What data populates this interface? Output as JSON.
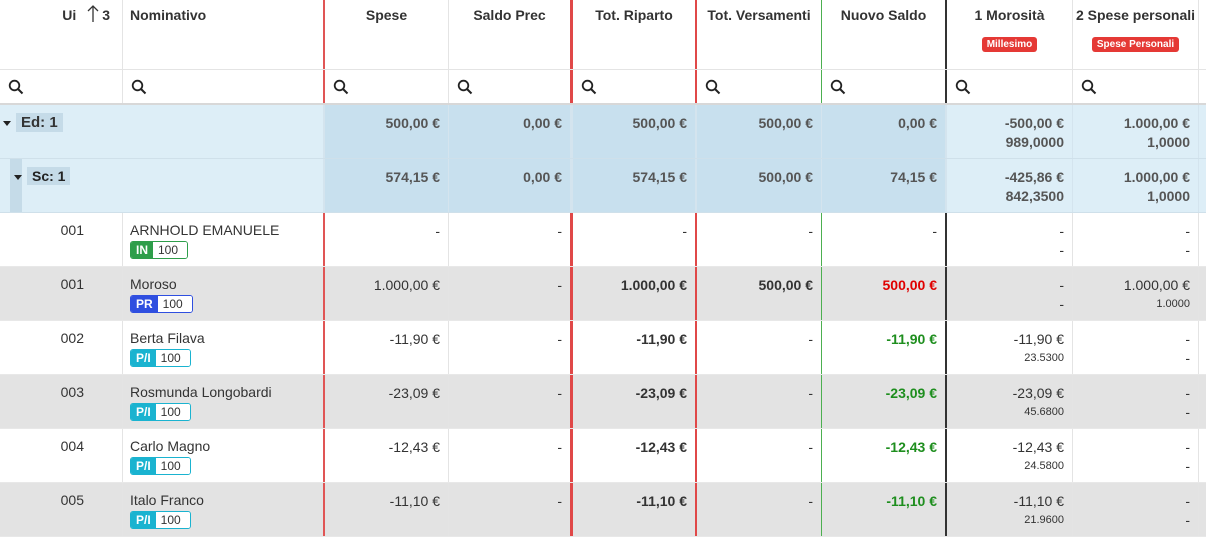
{
  "header": {
    "columns": [
      {
        "label": "Ui",
        "sort": "3"
      },
      {
        "label": "Nominativo"
      },
      {
        "label": "Spese"
      },
      {
        "label": "Saldo Prec"
      },
      {
        "label": "Tot. Riparto"
      },
      {
        "label": "Tot. Versamenti"
      },
      {
        "label": "Nuovo Saldo"
      },
      {
        "label": "1 Morosità",
        "badge": "Millesimo"
      },
      {
        "label": "2 Spese personali",
        "badge": "Spese Personali"
      }
    ]
  },
  "groups": [
    {
      "label": "Ed: 1",
      "spese": "500,00 €",
      "saldo_prec": "0,00 €",
      "tot_riparto": "500,00 €",
      "tot_versamenti": "500,00 €",
      "nuovo_saldo": "0,00 €",
      "morosita": [
        "-500,00 €",
        "989,0000"
      ],
      "spese_personali": [
        "1.000,00 €",
        "1,0000"
      ]
    },
    {
      "label": "Sc: 1",
      "spese": "574,15 €",
      "saldo_prec": "0,00 €",
      "tot_riparto": "574,15 €",
      "tot_versamenti": "500,00 €",
      "nuovo_saldo": "74,15 €",
      "morosita": [
        "-425,86 €",
        "842,3500"
      ],
      "spese_personali": [
        "1.000,00 €",
        "1,0000"
      ]
    }
  ],
  "rows": [
    {
      "ui": "001",
      "name": "ARNHOLD EMANUELE",
      "tag": "IN",
      "quota": 100,
      "spese": "-",
      "saldo_prec": "-",
      "tot_riparto": "-",
      "tot_versamenti": "-",
      "nuovo_saldo": "-",
      "morosita": [
        "-",
        "-"
      ],
      "spese_personali": [
        "-",
        "-"
      ]
    },
    {
      "ui": "001",
      "name": "Moroso",
      "tag": "PR",
      "quota": 100,
      "spese": "1.000,00 €",
      "saldo_prec": "-",
      "tot_riparto": "1.000,00 €",
      "tot_versamenti": "500,00 €",
      "nuovo_saldo": "500,00 €",
      "morosita": [
        "-",
        "-"
      ],
      "spese_personali": [
        "1.000,00 €",
        "1.0000"
      ]
    },
    {
      "ui": "002",
      "name": "Berta Filava",
      "tag": "P/I",
      "quota": 100,
      "spese": "-11,90 €",
      "saldo_prec": "-",
      "tot_riparto": "-11,90 €",
      "tot_versamenti": "-",
      "nuovo_saldo": "-11,90 €",
      "morosita": [
        "-11,90 €",
        "23.5300"
      ],
      "spese_personali": [
        "-",
        "-"
      ]
    },
    {
      "ui": "003",
      "name": "Rosmunda Longobardi",
      "tag": "P/I",
      "quota": 100,
      "spese": "-23,09 €",
      "saldo_prec": "-",
      "tot_riparto": "-23,09 €",
      "tot_versamenti": "-",
      "nuovo_saldo": "-23,09 €",
      "morosita": [
        "-23,09 €",
        "45.6800"
      ],
      "spese_personali": [
        "-",
        "-"
      ]
    },
    {
      "ui": "004",
      "name": "Carlo Magno",
      "tag": "P/I",
      "quota": 100,
      "spese": "-12,43 €",
      "saldo_prec": "-",
      "tot_riparto": "-12,43 €",
      "tot_versamenti": "-",
      "nuovo_saldo": "-12,43 €",
      "morosita": [
        "-12,43 €",
        "24.5800"
      ],
      "spese_personali": [
        "-",
        "-"
      ]
    },
    {
      "ui": "005",
      "name": "Italo Franco",
      "tag": "P/I",
      "quota": 100,
      "spese": "-11,10 €",
      "saldo_prec": "-",
      "tot_riparto": "-11,10 €",
      "tot_versamenti": "-",
      "nuovo_saldo": "-11,10 €",
      "morosita": [
        "-11,10 €",
        "21.9600"
      ],
      "spese_personali": [
        "-",
        "-"
      ]
    }
  ]
}
